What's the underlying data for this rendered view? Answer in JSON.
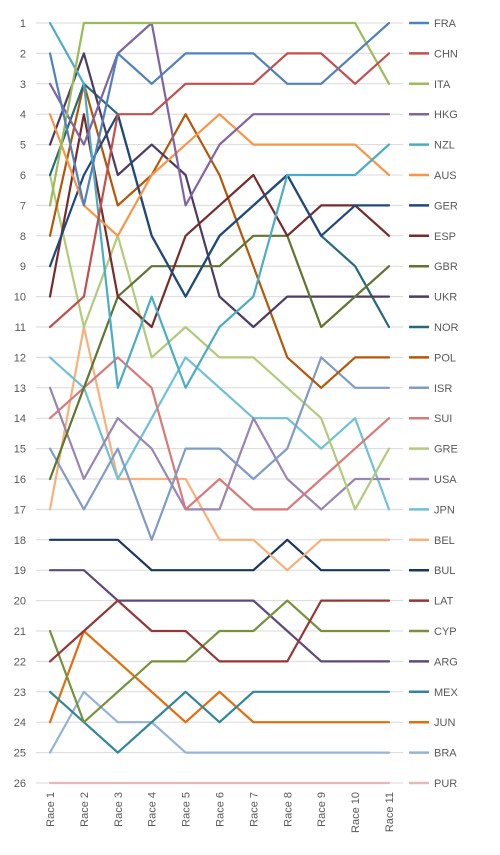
{
  "chart_data": {
    "type": "line",
    "title": "",
    "xlabel": "",
    "ylabel": "",
    "y_reversed": true,
    "ylim": [
      1,
      26
    ],
    "yticks": [
      "1",
      "2",
      "3",
      "4",
      "5",
      "6",
      "7",
      "8",
      "9",
      "10",
      "11",
      "12",
      "13",
      "14",
      "15",
      "16",
      "17",
      "18",
      "19",
      "20",
      "21",
      "22",
      "23",
      "24",
      "25",
      "26"
    ],
    "grid": true,
    "legend_position": "right",
    "categories": [
      "Race 1",
      "Race 2",
      "Race 3",
      "Race 4",
      "Race 5",
      "Race 6",
      "Race 7",
      "Race 8",
      "Race 9",
      "Race 10",
      "Race 11"
    ],
    "series": [
      {
        "name": "FRA",
        "color": "#4f81bd",
        "values": [
          2,
          7,
          2,
          3,
          2,
          2,
          2,
          3,
          3,
          2,
          1
        ]
      },
      {
        "name": "CHN",
        "color": "#c0504d",
        "values": [
          11,
          10,
          4,
          4,
          3,
          3,
          3,
          2,
          2,
          3,
          2
        ]
      },
      {
        "name": "ITA",
        "color": "#9bbb59",
        "values": [
          7,
          1,
          1,
          1,
          1,
          1,
          1,
          1,
          1,
          1,
          3
        ]
      },
      {
        "name": "HKG",
        "color": "#8064a2",
        "values": [
          3,
          5,
          2,
          1,
          7,
          5,
          4,
          4,
          4,
          4,
          4
        ]
      },
      {
        "name": "NZL",
        "color": "#4bacc6",
        "values": [
          1,
          3,
          13,
          10,
          13,
          11,
          10,
          6,
          6,
          6,
          5
        ]
      },
      {
        "name": "AUS",
        "color": "#f79646",
        "values": [
          4,
          7,
          8,
          6,
          5,
          4,
          5,
          5,
          5,
          5,
          6
        ]
      },
      {
        "name": "GER",
        "color": "#1f497d",
        "values": [
          9,
          6,
          4,
          8,
          10,
          8,
          7,
          6,
          8,
          7,
          7
        ]
      },
      {
        "name": "ESP",
        "color": "#772c2a",
        "values": [
          10,
          4,
          10,
          11,
          8,
          7,
          6,
          8,
          7,
          7,
          8
        ]
      },
      {
        "name": "GBR",
        "color": "#5f7530",
        "values": [
          16,
          13,
          10,
          9,
          9,
          9,
          8,
          8,
          11,
          10,
          9
        ]
      },
      {
        "name": "UKR",
        "color": "#4d3b62",
        "values": [
          5,
          2,
          6,
          5,
          6,
          10,
          11,
          10,
          10,
          10,
          10
        ]
      },
      {
        "name": "NOR",
        "color": "#276a7c",
        "values": [
          6,
          3,
          4,
          8,
          10,
          8,
          7,
          6,
          8,
          9,
          11
        ]
      },
      {
        "name": "POL",
        "color": "#b65708",
        "values": [
          8,
          3,
          7,
          6,
          4,
          6,
          9,
          12,
          13,
          12,
          12
        ]
      },
      {
        "name": "ISR",
        "color": "#7f9bc8",
        "values": [
          15,
          17,
          15,
          18,
          15,
          15,
          16,
          15,
          12,
          13,
          13
        ]
      },
      {
        "name": "SUI",
        "color": "#d97a78",
        "values": [
          14,
          13,
          12,
          13,
          17,
          16,
          17,
          17,
          16,
          15,
          14
        ]
      },
      {
        "name": "GRE",
        "color": "#b2cb7a",
        "values": [
          6,
          11,
          8,
          12,
          11,
          12,
          12,
          13,
          14,
          17,
          15
        ]
      },
      {
        "name": "USA",
        "color": "#9885b5",
        "values": [
          13,
          16,
          14,
          15,
          17,
          17,
          14,
          16,
          17,
          16,
          16
        ]
      },
      {
        "name": "JPN",
        "color": "#6ec1d6",
        "values": [
          12,
          13,
          16,
          14,
          12,
          13,
          14,
          14,
          15,
          14,
          17
        ]
      },
      {
        "name": "BEL",
        "color": "#f9b07a",
        "values": [
          17,
          11,
          16,
          16,
          16,
          18,
          18,
          19,
          18,
          18,
          18
        ]
      },
      {
        "name": "BUL",
        "color": "#17375e",
        "values": [
          18,
          18,
          18,
          19,
          19,
          19,
          19,
          18,
          19,
          19,
          19
        ]
      },
      {
        "name": "LAT",
        "color": "#953735",
        "values": [
          22,
          21,
          20,
          21,
          21,
          22,
          22,
          22,
          20,
          20,
          20
        ]
      },
      {
        "name": "CYP",
        "color": "#76923c",
        "values": [
          21,
          24,
          23,
          22,
          22,
          21,
          21,
          20,
          21,
          21,
          21
        ]
      },
      {
        "name": "ARG",
        "color": "#5f497a",
        "values": [
          19,
          19,
          20,
          20,
          20,
          20,
          20,
          21,
          22,
          22,
          22
        ]
      },
      {
        "name": "MEX",
        "color": "#31859c",
        "values": [
          23,
          24,
          25,
          24,
          23,
          24,
          23,
          23,
          23,
          23,
          23
        ]
      },
      {
        "name": "JUN",
        "color": "#e46c0a",
        "values": [
          24,
          21,
          22,
          23,
          24,
          23,
          24,
          24,
          24,
          24,
          24
        ]
      },
      {
        "name": "BRA",
        "color": "#95b3d7",
        "values": [
          25,
          23,
          24,
          24,
          25,
          25,
          25,
          25,
          25,
          25,
          25
        ]
      },
      {
        "name": "PUR",
        "color": "#e6b9b8",
        "values": [
          26,
          26,
          26,
          26,
          26,
          26,
          26,
          26,
          26,
          26,
          26
        ]
      }
    ]
  }
}
